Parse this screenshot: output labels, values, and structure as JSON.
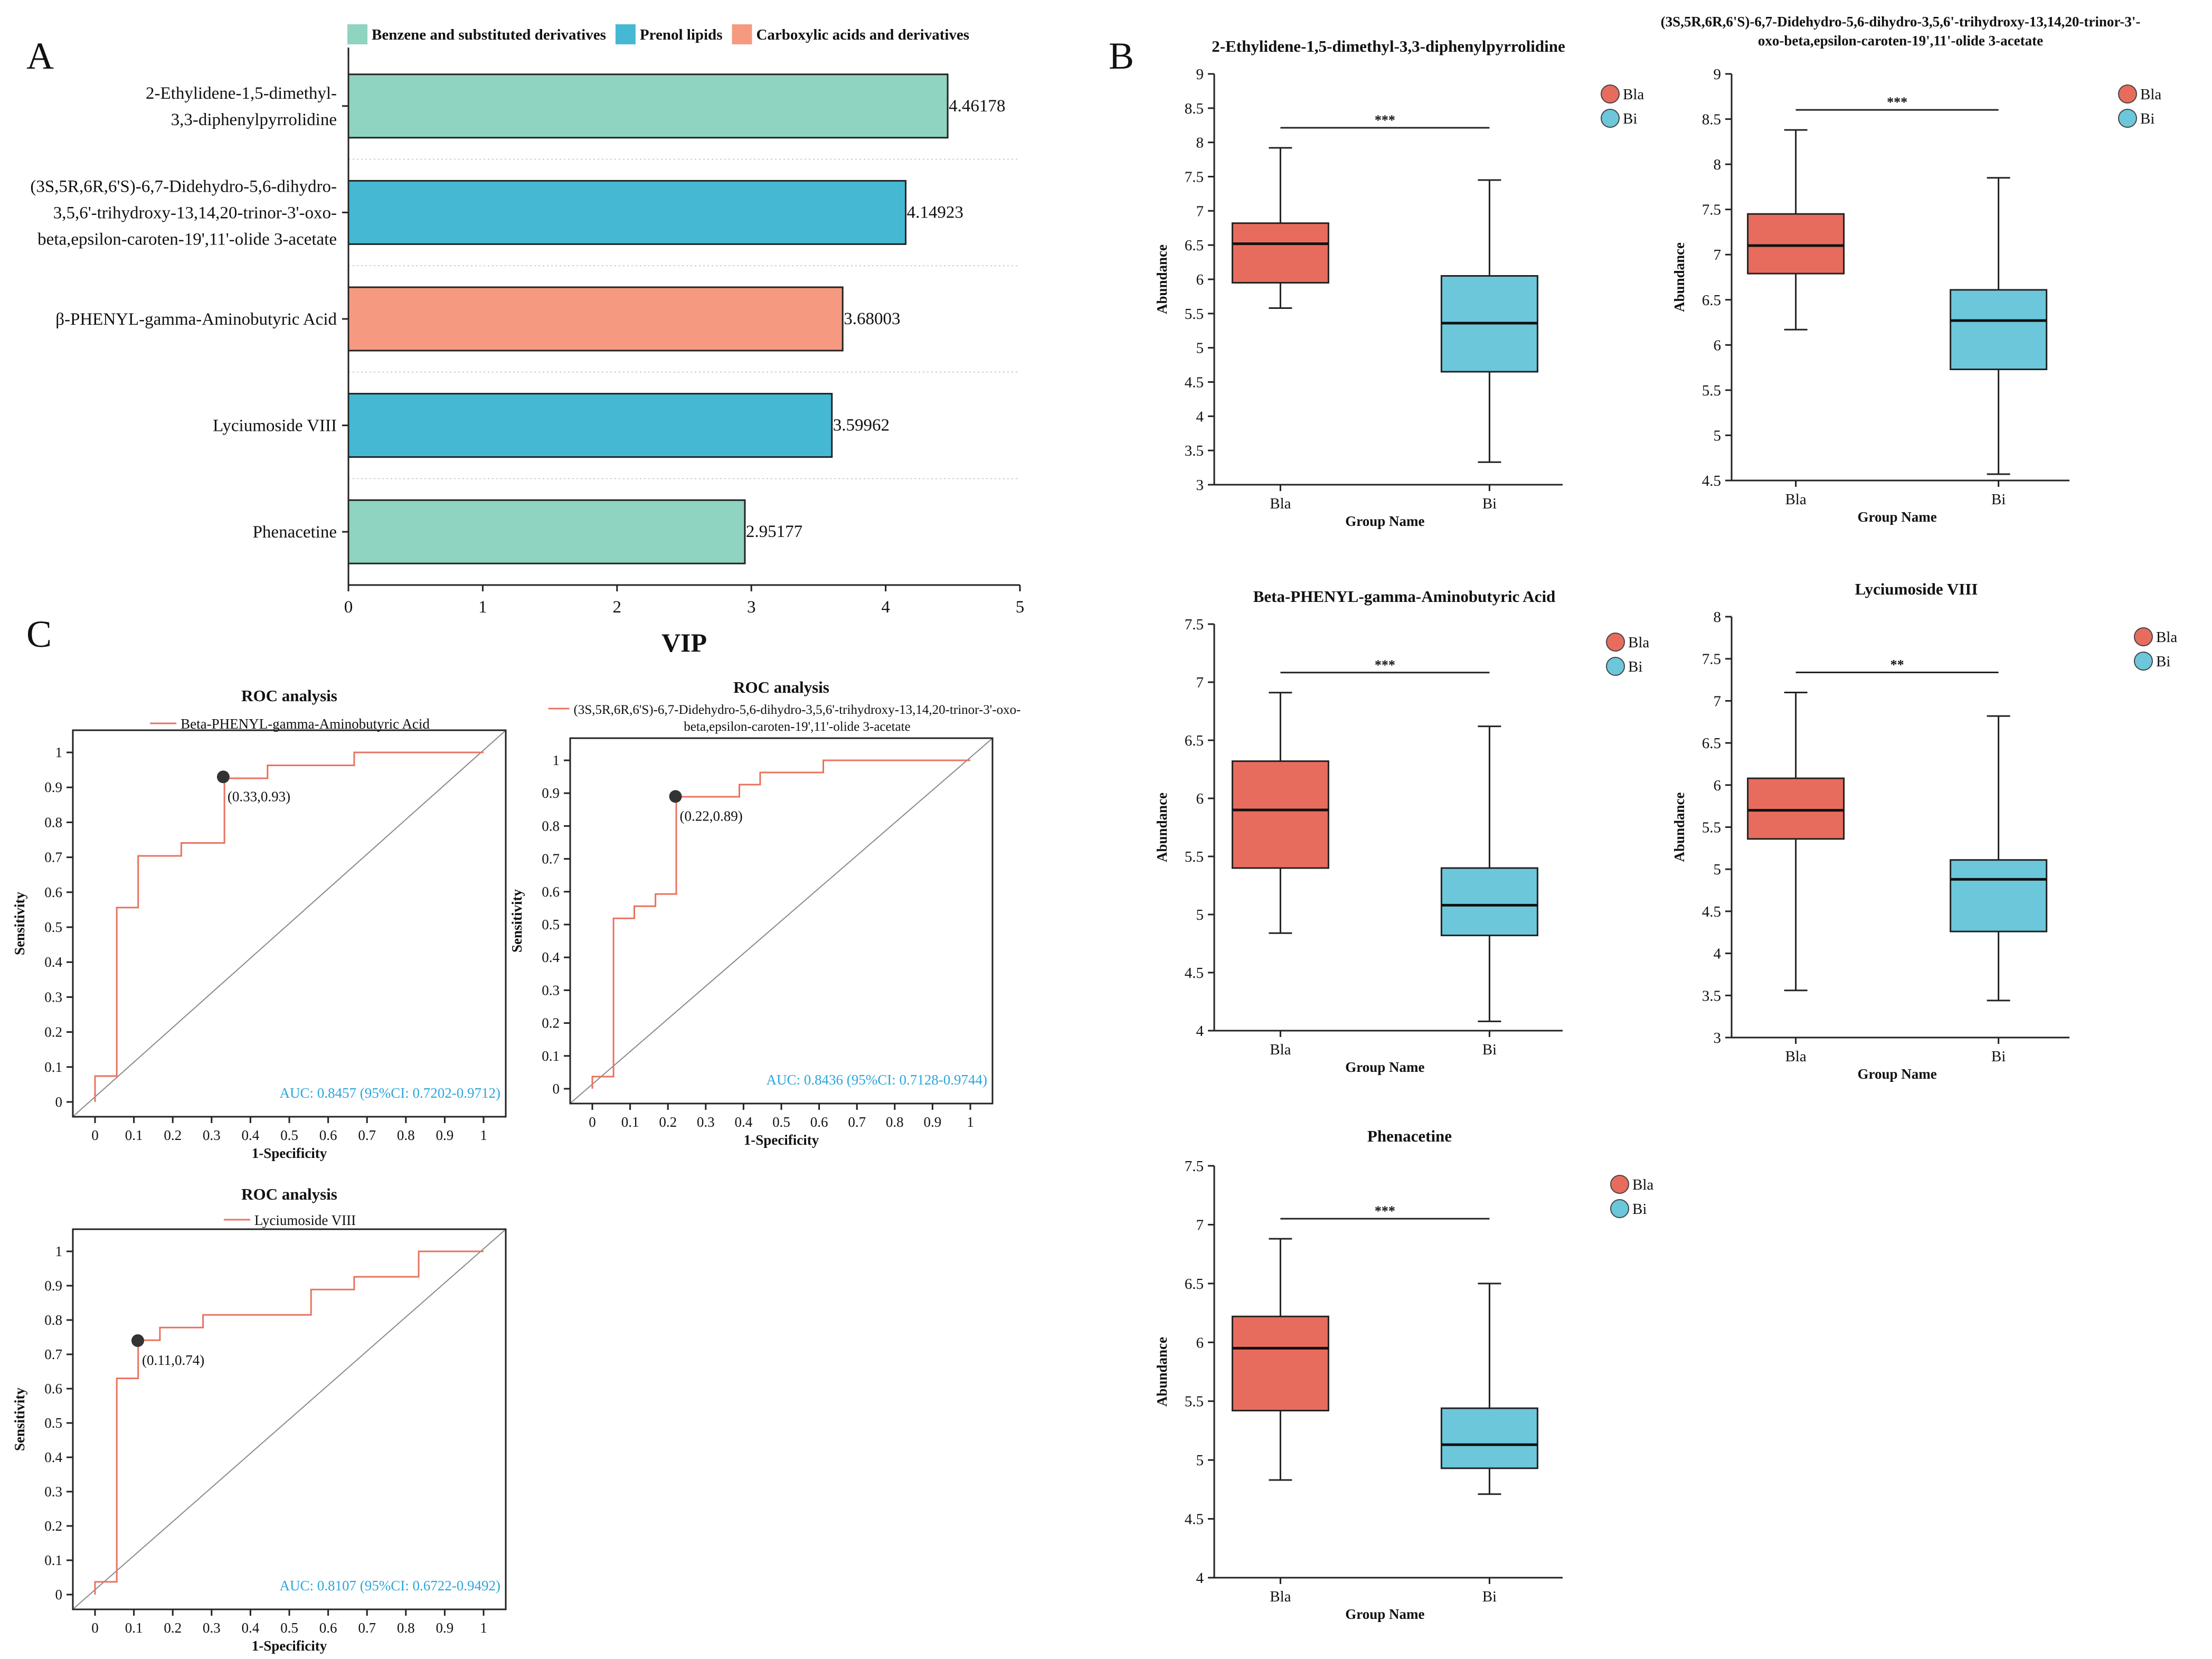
{
  "panel_letters": {
    "a": "A",
    "b": "B",
    "c": "C"
  },
  "colors": {
    "benzene": "#8fd3c1",
    "prenol": "#45b8d3",
    "carboxylic": "#f59a80",
    "bla": "#e86c5d",
    "bi": "#6cc7db",
    "roc_line": "#e8735f",
    "auc_text": "#2ba5dc"
  },
  "chart_data": [
    {
      "type": "bar",
      "orientation": "horizontal",
      "panel": "A",
      "xlabel": "VIP",
      "xlim": [
        0,
        5
      ],
      "xticks": [
        "0",
        "1",
        "2",
        "3",
        "4",
        "5"
      ],
      "legend": [
        {
          "label": "Benzene and substituted derivatives",
          "color_key": "benzene"
        },
        {
          "label": "Prenol lipids",
          "color_key": "prenol"
        },
        {
          "label": "Carboxylic acids and derivatives",
          "color_key": "carboxylic"
        }
      ],
      "bars": [
        {
          "label_lines": [
            "2-Ethylidene-1,5-dimethyl-",
            "3,3-diphenylpyrrolidine"
          ],
          "value": 4.46178,
          "value_label": "4.46178",
          "class": "benzene"
        },
        {
          "label_lines": [
            "(3S,5R,6R,6'S)-6,7-Didehydro-5,6-dihydro-",
            "3,5,6'-trihydroxy-13,14,20-trinor-3'-oxo-",
            "beta,epsilon-caroten-19',11'-olide 3-acetate"
          ],
          "value": 4.14923,
          "value_label": "4.14923",
          "class": "prenol"
        },
        {
          "label_lines": [
            "β-PHENYL-gamma-Aminobutyric Acid"
          ],
          "value": 3.68003,
          "value_label": "3.68003",
          "class": "carboxylic"
        },
        {
          "label_lines": [
            "Lyciumoside VIII"
          ],
          "value": 3.59962,
          "value_label": "3.59962",
          "class": "prenol"
        },
        {
          "label_lines": [
            "Phenacetine"
          ],
          "value": 2.95177,
          "value_label": "2.95177",
          "class": "benzene"
        }
      ]
    },
    {
      "type": "box",
      "panel": "B",
      "title_lines": [
        "2-Ethylidene-1,5-dimethyl-3,3-diphenylpyrrolidine"
      ],
      "ylabel": "Abundance",
      "xlabel": "Group Name",
      "ylim": [
        3,
        9
      ],
      "yticks": [
        "3",
        "3.5",
        "4",
        "4.5",
        "5",
        "5.5",
        "6",
        "6.5",
        "7",
        "7.5",
        "8",
        "8.5",
        "9"
      ],
      "significance": "***",
      "groups": [
        {
          "name": "Bla",
          "min": 5.58,
          "q1": 5.95,
          "median": 6.52,
          "q3": 6.82,
          "max": 7.92
        },
        {
          "name": "Bi",
          "min": 3.33,
          "q1": 4.65,
          "median": 5.36,
          "q3": 6.05,
          "max": 7.45
        }
      ]
    },
    {
      "type": "box",
      "panel": "B",
      "title_lines": [
        "(3S,5R,6R,6'S)-6,7-Didehydro-5,6-dihydro-3,5,6'-trihydroxy-13,14,20-trinor-3'-",
        "oxo-beta,epsilon-caroten-19',11'-olide 3-acetate"
      ],
      "ylabel": "Abundance",
      "xlabel": "Group Name",
      "ylim": [
        4.5,
        9
      ],
      "yticks": [
        "4.5",
        "5",
        "5.5",
        "6",
        "6.5",
        "7",
        "7.5",
        "8",
        "8.5",
        "9"
      ],
      "significance": "***",
      "groups": [
        {
          "name": "Bla",
          "min": 6.17,
          "q1": 6.79,
          "median": 7.1,
          "q3": 7.45,
          "max": 8.38
        },
        {
          "name": "Bi",
          "min": 4.57,
          "q1": 5.73,
          "median": 6.27,
          "q3": 6.61,
          "max": 7.85
        }
      ]
    },
    {
      "type": "box",
      "panel": "B",
      "title_lines": [
        "Beta-PHENYL-gamma-Aminobutyric Acid"
      ],
      "ylabel": "Abundance",
      "xlabel": "Group Name",
      "ylim": [
        4,
        7.5
      ],
      "yticks": [
        "4",
        "4.5",
        "5",
        "5.5",
        "6",
        "6.5",
        "7",
        "7.5"
      ],
      "significance": "***",
      "groups": [
        {
          "name": "Bla",
          "min": 4.84,
          "q1": 5.4,
          "median": 5.9,
          "q3": 6.32,
          "max": 6.91
        },
        {
          "name": "Bi",
          "min": 4.08,
          "q1": 4.82,
          "median": 5.08,
          "q3": 5.4,
          "max": 6.62
        }
      ]
    },
    {
      "type": "box",
      "panel": "B",
      "title_lines": [
        "Lyciumoside VIII"
      ],
      "ylabel": "Abundance",
      "xlabel": "Group Name",
      "ylim": [
        3,
        8
      ],
      "yticks": [
        "3",
        "3.5",
        "4",
        "4.5",
        "5",
        "5.5",
        "6",
        "6.5",
        "7",
        "7.5",
        "8"
      ],
      "significance": "**",
      "groups": [
        {
          "name": "Bla",
          "min": 3.56,
          "q1": 5.36,
          "median": 5.7,
          "q3": 6.08,
          "max": 7.1
        },
        {
          "name": "Bi",
          "min": 3.44,
          "q1": 4.26,
          "median": 4.88,
          "q3": 5.11,
          "max": 6.82
        }
      ]
    },
    {
      "type": "box",
      "panel": "B",
      "title_lines": [
        "Phenacetine"
      ],
      "ylabel": "Abundance",
      "xlabel": "Group Name",
      "ylim": [
        4,
        7.5
      ],
      "yticks": [
        "4",
        "4.5",
        "5",
        "5.5",
        "6",
        "6.5",
        "7",
        "7.5"
      ],
      "significance": "***",
      "groups": [
        {
          "name": "Bla",
          "min": 4.83,
          "q1": 5.42,
          "median": 5.95,
          "q3": 6.22,
          "max": 6.88
        },
        {
          "name": "Bi",
          "min": 4.71,
          "q1": 4.93,
          "median": 5.13,
          "q3": 5.44,
          "max": 6.5
        }
      ]
    },
    {
      "type": "line",
      "subtype": "roc",
      "panel": "C",
      "title": "ROC analysis",
      "legend_lines": [
        "Beta-PHENYL-gamma-Aminobutyric Acid"
      ],
      "xlabel": "1-Specificity",
      "ylabel": "Sensitivity",
      "xlim": [
        0,
        1
      ],
      "ylim": [
        0,
        1
      ],
      "ticks": [
        "0",
        "0.1",
        "0.2",
        "0.3",
        "0.4",
        "0.5",
        "0.6",
        "0.7",
        "0.8",
        "0.9",
        "1"
      ],
      "auc_label": "AUC: 0.8457 (95%CI: 0.7202-0.9712)",
      "best_point": {
        "x": 0.33,
        "y": 0.93,
        "label": "(0.33,0.93)"
      },
      "x": [
        0,
        0,
        0.056,
        0.056,
        0.111,
        0.111,
        0.222,
        0.222,
        0.333,
        0.333,
        0.444,
        0.444,
        0.667,
        0.667,
        1
      ],
      "y": [
        0,
        0.074,
        0.074,
        0.556,
        0.556,
        0.704,
        0.704,
        0.741,
        0.741,
        0.926,
        0.926,
        0.963,
        0.963,
        1,
        1
      ]
    },
    {
      "type": "line",
      "subtype": "roc",
      "panel": "C",
      "title": "ROC analysis",
      "legend_lines": [
        "(3S,5R,6R,6'S)-6,7-Didehydro-5,6-dihydro-3,5,6'-trihydroxy-13,14,20-trinor-3'-oxo-",
        "beta,epsilon-caroten-19',11'-olide 3-acetate"
      ],
      "xlabel": "1-Specificity",
      "ylabel": "Sensitivity",
      "xlim": [
        0,
        1
      ],
      "ylim": [
        0,
        1
      ],
      "ticks": [
        "0",
        "0.1",
        "0.2",
        "0.3",
        "0.4",
        "0.5",
        "0.6",
        "0.7",
        "0.8",
        "0.9",
        "1"
      ],
      "auc_label": "AUC: 0.8436 (95%CI: 0.7128-0.9744)",
      "best_point": {
        "x": 0.22,
        "y": 0.89,
        "label": "(0.22,0.89)"
      },
      "x": [
        0,
        0,
        0.056,
        0.056,
        0.111,
        0.111,
        0.167,
        0.167,
        0.222,
        0.222,
        0.389,
        0.389,
        0.444,
        0.444,
        0.611,
        0.611,
        1
      ],
      "y": [
        0,
        0.037,
        0.037,
        0.519,
        0.519,
        0.556,
        0.556,
        0.593,
        0.593,
        0.889,
        0.889,
        0.926,
        0.926,
        0.963,
        0.963,
        1,
        1
      ]
    },
    {
      "type": "line",
      "subtype": "roc",
      "panel": "C",
      "title": "ROC analysis",
      "legend_lines": [
        "Lyciumoside VIII"
      ],
      "xlabel": "1-Specificity",
      "ylabel": "Sensitivity",
      "xlim": [
        0,
        1
      ],
      "ylim": [
        0,
        1
      ],
      "ticks": [
        "0",
        "0.1",
        "0.2",
        "0.3",
        "0.4",
        "0.5",
        "0.6",
        "0.7",
        "0.8",
        "0.9",
        "1"
      ],
      "auc_label": "AUC: 0.8107 (95%CI: 0.6722-0.9492)",
      "best_point": {
        "x": 0.11,
        "y": 0.74,
        "label": "(0.11,0.74)"
      },
      "x": [
        0,
        0,
        0.056,
        0.056,
        0.111,
        0.111,
        0.167,
        0.167,
        0.278,
        0.278,
        0.556,
        0.556,
        0.667,
        0.667,
        0.833,
        0.833,
        1
      ],
      "y": [
        0,
        0.037,
        0.037,
        0.63,
        0.63,
        0.741,
        0.741,
        0.778,
        0.778,
        0.815,
        0.815,
        0.889,
        0.889,
        0.926,
        0.926,
        1,
        1
      ]
    }
  ]
}
